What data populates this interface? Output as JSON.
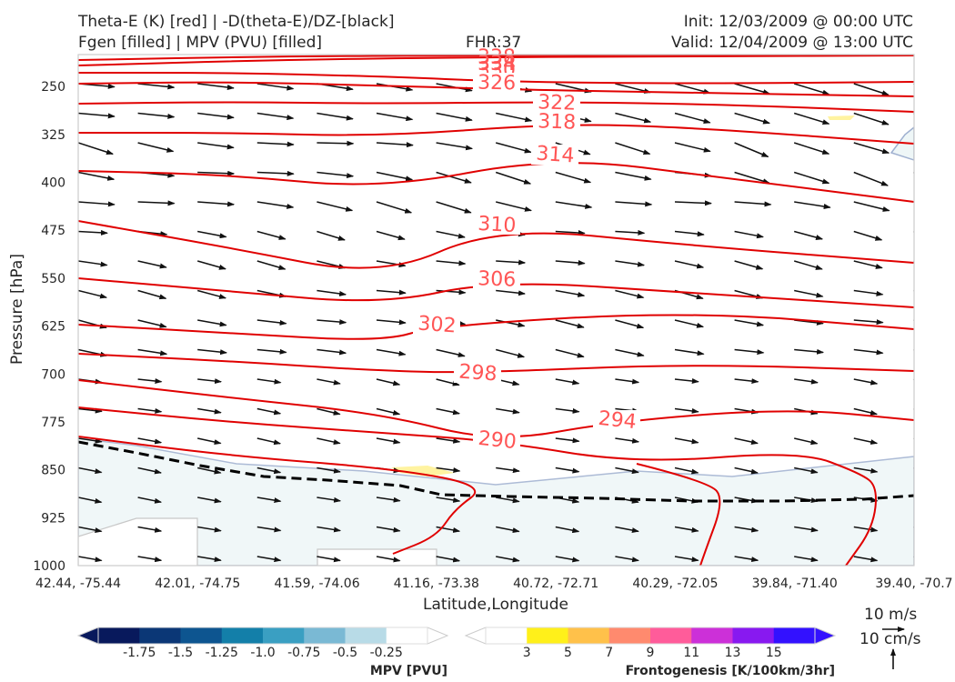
{
  "header": {
    "title_left_1": "Theta-E (K) [red] | -D(theta-E)/DZ-[black]",
    "title_left_2": "Fgen [filled] | MPV (PVU) [filled]",
    "fhr": "FHR:37",
    "init": "Init: 12/03/2009 @ 00:00 UTC",
    "valid": "Valid: 12/04/2009 @ 13:00 UTC"
  },
  "chart_data": {
    "type": "cross-section",
    "xlabel": "Latitude,Longitude",
    "ylabel": "Pressure [hPa]",
    "x_tick_labels": [
      "42.44, -75.44",
      "42.01, -74.75",
      "41.59, -74.06",
      "41.16, -73.38",
      "40.72, -72.71",
      "40.29, -72.05",
      "39.84, -71.40",
      "39.40, -70.7"
    ],
    "y_ticks": [
      250,
      325,
      400,
      475,
      550,
      625,
      700,
      775,
      850,
      925,
      1000
    ],
    "ylim": [
      1000,
      200
    ],
    "y_inverted": true,
    "theta_e_contours": [
      {
        "label": "338"
      },
      {
        "label": "334"
      },
      {
        "label": "330"
      },
      {
        "label": "326"
      },
      {
        "label": "322"
      },
      {
        "label": "318"
      },
      {
        "label": "314"
      },
      {
        "label": "310"
      },
      {
        "label": "306"
      },
      {
        "label": "302"
      },
      {
        "label": "298"
      },
      {
        "label": "294"
      },
      {
        "label": "290"
      }
    ],
    "theta_e_color": "#e00000",
    "dthetae_dz_color": "#000000",
    "mpv_colorbar": {
      "title": "MPV [PVU]",
      "ticks": [
        "-1.75",
        "-1.5",
        "-1.25",
        "-1.0",
        "-0.75",
        "-0.5",
        "-0.25"
      ],
      "colors": [
        "#08195c",
        "#0b3776",
        "#0d5590",
        "#137fa9",
        "#3a9fc2",
        "#7ab9d4",
        "#b8dbe7",
        "#ffffff"
      ]
    },
    "fgen_colorbar": {
      "title": "Frontogenesis [K/100km/3hr]",
      "ticks": [
        "3",
        "5",
        "7",
        "9",
        "11",
        "13",
        "15"
      ],
      "colors": [
        "#ffffff",
        "#fff01a",
        "#ffc14a",
        "#ff8a6e",
        "#ff5c9a",
        "#cc30d8",
        "#8819f0",
        "#3311ff"
      ]
    },
    "wind_key": {
      "horizontal": "10 m/s",
      "vertical": "10 cm/s"
    }
  }
}
